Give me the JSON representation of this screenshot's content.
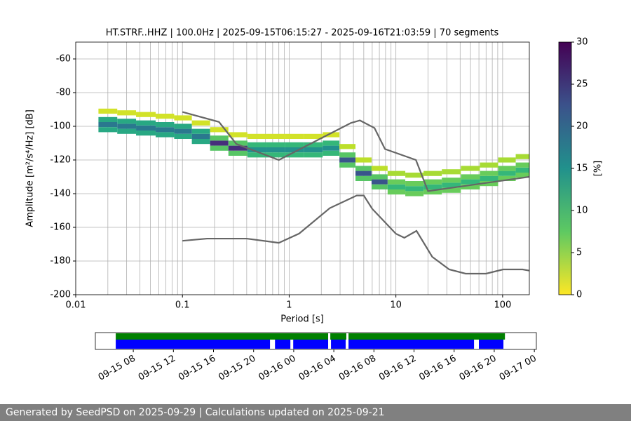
{
  "chart_data": [
    {
      "type": "heatmap",
      "title": "HT.STRF..HHZ | 100.0Hz | 2025-09-15T06:15:27 - 2025-09-16T21:03:59 | 70 segments",
      "x_label": "Period [s]",
      "y_label": "Amplitude [m²/s⁴/Hz] [dB]",
      "log_x": true,
      "grid": true,
      "xlim": [
        0.01,
        178
      ],
      "xticks": [
        0.01,
        0.1,
        1,
        10,
        100
      ],
      "xminorticks": [
        0.02,
        0.03,
        0.04,
        0.05,
        0.06,
        0.07,
        0.08,
        0.09,
        0.2,
        0.3,
        0.4,
        0.5,
        0.6,
        0.7,
        0.8,
        0.9,
        2,
        3,
        4,
        5,
        6,
        7,
        8,
        9,
        20,
        30,
        40,
        50,
        60,
        70,
        80,
        90
      ],
      "ylim": [
        -200,
        -50
      ],
      "yticks": [
        -200,
        -180,
        -160,
        -140,
        -120,
        -100,
        -80,
        -60
      ],
      "colormap": "viridis_r",
      "clim": [
        0,
        30
      ],
      "cticks": [
        0,
        5,
        10,
        15,
        20,
        25,
        30
      ],
      "colorbar_label": "[%]",
      "x": [
        0.02,
        0.02,
        0.02,
        0.02,
        0.03,
        0.03,
        0.03,
        0.03,
        0.045,
        0.045,
        0.045,
        0.045,
        0.07,
        0.07,
        0.07,
        0.07,
        0.1,
        0.1,
        0.1,
        0.1,
        0.15,
        0.15,
        0.15,
        0.15,
        0.22,
        0.22,
        0.22,
        0.22,
        0.33,
        0.33,
        0.33,
        0.33,
        0.5,
        0.5,
        0.5,
        0.5,
        0.75,
        0.75,
        0.75,
        0.75,
        1.1,
        1.1,
        1.1,
        1.1,
        1.7,
        1.7,
        1.7,
        1.7,
        2.5,
        2.5,
        2.5,
        2.5,
        3.5,
        3.5,
        3.5,
        3.5,
        5,
        5,
        5,
        5,
        7,
        7,
        7,
        7,
        10,
        10,
        10,
        10,
        15,
        15,
        15,
        15,
        22,
        22,
        22,
        22,
        33,
        33,
        33,
        33,
        50,
        50,
        50,
        50,
        75,
        75,
        75,
        75,
        110,
        110,
        110,
        110,
        160,
        160,
        160,
        160
      ],
      "y": [
        -99,
        -96,
        -102,
        -91,
        -100,
        -97,
        -103,
        -92,
        -101,
        -98,
        -104,
        -93,
        -102,
        -99,
        -105,
        -94,
        -103,
        -100,
        -106,
        -95,
        -106,
        -103,
        -109,
        -98,
        -110,
        -107,
        -113,
        -102,
        -113,
        -110,
        -116,
        -105,
        -114,
        -111,
        -117,
        -106,
        -114,
        -111,
        -117,
        -106,
        -114,
        -111,
        -117,
        -106,
        -114,
        -111,
        -117,
        -106,
        -113,
        -110,
        -116,
        -105,
        -120,
        -117,
        -123,
        -112,
        -128,
        -125,
        -131,
        -120,
        -133,
        -130,
        -136,
        -125,
        -136,
        -133,
        -139,
        -128,
        -137,
        -134,
        -140,
        -129,
        -136,
        -133,
        -139,
        -128,
        -135,
        -132,
        -138,
        -127,
        -133,
        -130,
        -136,
        -125,
        -131,
        -128,
        -134,
        -123,
        -128,
        -125,
        -131,
        -120,
        -126,
        -123,
        -129,
        -118
      ],
      "values": [
        18,
        12,
        12,
        2,
        18,
        12,
        12,
        2,
        18,
        12,
        12,
        2,
        18,
        12,
        12,
        2,
        18,
        12,
        12,
        2,
        18,
        12,
        12,
        2,
        26,
        8,
        8,
        2,
        26,
        8,
        8,
        2,
        15,
        10,
        10,
        2,
        15,
        10,
        10,
        2,
        15,
        10,
        10,
        2,
        15,
        10,
        10,
        2,
        15,
        10,
        10,
        2,
        22,
        8,
        8,
        3,
        22,
        8,
        8,
        3,
        22,
        8,
        8,
        3,
        10,
        7,
        7,
        4,
        10,
        7,
        7,
        4,
        10,
        7,
        7,
        4,
        10,
        7,
        7,
        4,
        10,
        7,
        7,
        4,
        10,
        7,
        7,
        4,
        10,
        7,
        7,
        4,
        10,
        7,
        7,
        4
      ],
      "series": [
        {
          "color": "#666666",
          "x": [
            0.1,
            0.22,
            0.32,
            0.8,
            3.8,
            4.6,
            6.3,
            7.9,
            15.4,
            20,
            178
          ],
          "values": [
            -91.5,
            -97.4,
            -110.5,
            -120,
            -98,
            -96.5,
            -101,
            -113.5,
            -120,
            -138.5,
            -130
          ]
        },
        {
          "color": "#666666",
          "x": [
            0.1,
            0.17,
            0.4,
            0.8,
            1.24,
            2.4,
            4.3,
            5,
            6,
            10,
            12,
            15.6,
            21.9,
            31.6,
            45,
            70,
            101,
            154,
            178
          ],
          "values": [
            -168,
            -166.7,
            -166.7,
            -169.2,
            -163.7,
            -148.6,
            -141.1,
            -141.1,
            -149,
            -163.8,
            -166.2,
            -162.1,
            -177.5,
            -185,
            -187.5,
            -187.5,
            -185,
            -185,
            -185.7
          ]
        }
      ]
    },
    {
      "type": "timeline",
      "xlim": [
        "2025-09-15T04:13",
        "2025-09-17T00:12"
      ],
      "xticks": [
        {
          "value": "2025-09-15T08:00",
          "label": "09-15 08"
        },
        {
          "value": "2025-09-15T12:00",
          "label": "09-15 12"
        },
        {
          "value": "2025-09-15T16:00",
          "label": "09-15 16"
        },
        {
          "value": "2025-09-15T20:00",
          "label": "09-15 20"
        },
        {
          "value": "2025-09-16T00:00",
          "label": "09-16 00"
        },
        {
          "value": "2025-09-16T04:00",
          "label": "09-16 04"
        },
        {
          "value": "2025-09-16T08:00",
          "label": "09-16 08"
        },
        {
          "value": "2025-09-16T12:00",
          "label": "09-16 12"
        },
        {
          "value": "2025-09-16T16:00",
          "label": "09-16 16"
        },
        {
          "value": "2025-09-16T20:00",
          "label": "09-16 20"
        },
        {
          "value": "2025-09-17T00:00",
          "label": "09-17 00"
        }
      ],
      "series": [
        {
          "color": "green",
          "segments": [
            [
              "2025-09-15T06:15",
              "2025-09-16T03:26"
            ],
            [
              "2025-09-16T03:39",
              "2025-09-16T05:15"
            ],
            [
              "2025-09-16T05:28",
              "2025-09-16T21:04"
            ]
          ]
        },
        {
          "color": "blue",
          "segments": [
            [
              "2025-09-15T06:15",
              "2025-09-15T21:38"
            ],
            [
              "2025-09-15T22:08",
              "2025-09-15T23:40"
            ],
            [
              "2025-09-15T23:57",
              "2025-09-16T03:26"
            ],
            [
              "2025-09-16T03:43",
              "2025-09-16T05:11"
            ],
            [
              "2025-09-16T05:28",
              "2025-09-16T17:59"
            ],
            [
              "2025-09-16T18:28",
              "2025-09-16T20:55"
            ]
          ]
        }
      ]
    }
  ],
  "footer": "Generated by SeedPSD on 2025-09-29 | Calculations updated on 2025-09-21"
}
